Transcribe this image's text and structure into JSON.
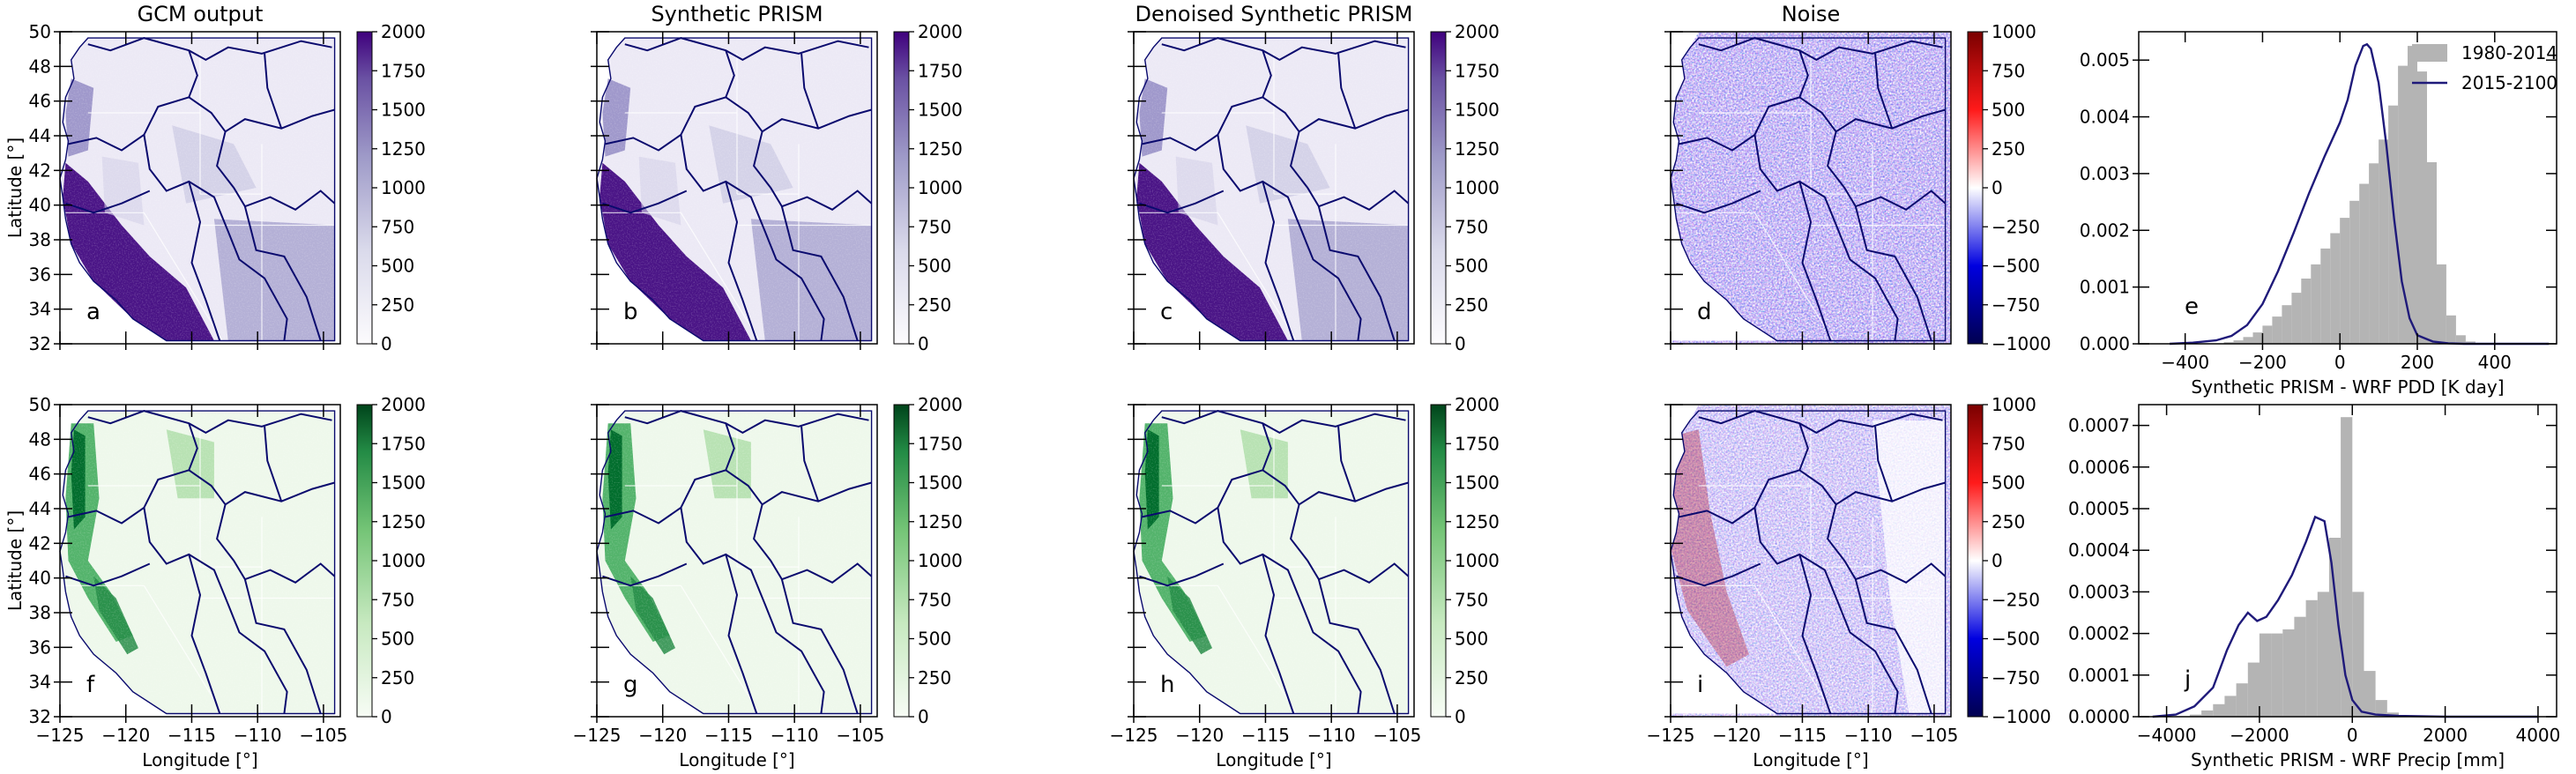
{
  "figure": {
    "col_titles": [
      "GCM output",
      "Synthetic PRISM",
      "Denoised Synthetic PRISM",
      "Noise"
    ],
    "ylabel": "Latitude [°]",
    "xlabel": "Longitude [°]",
    "lat_ticks": [
      "50",
      "48",
      "46",
      "44",
      "42",
      "40",
      "38",
      "36",
      "34",
      "32"
    ],
    "lon_ticks": [
      "−125",
      "−120",
      "−115",
      "−110",
      "−105"
    ],
    "cbar_ticks_pos": [
      "2000",
      "1750",
      "1500",
      "1250",
      "1000",
      "750",
      "500",
      "250",
      "0"
    ],
    "cbar_ticks_div": [
      "1000",
      "750",
      "500",
      "250",
      "0",
      "−250",
      "−500",
      "−750",
      "−1000"
    ],
    "panel_letters": [
      "a",
      "b",
      "c",
      "d",
      "e",
      "f",
      "g",
      "h",
      "i",
      "j"
    ]
  },
  "colors": {
    "purple_dark": "#3f007d",
    "purple_light": "#fcfbfd",
    "green_dark": "#00441b",
    "green_light": "#f7fcf5",
    "noise_high": "#67000d",
    "noise_low": "#000080",
    "boundary": "#0a0a6e",
    "hist_bar": "#b4b4b4",
    "line": "#1f1a7a"
  },
  "chart_data": [
    {
      "type": "area",
      "title": "",
      "xlabel": "Synthetic PRISM - WRF PDD [K day]",
      "ylabel": "",
      "xlim": [
        -520,
        560
      ],
      "ylim": [
        0,
        0.0055
      ],
      "xticks": [
        "−400",
        "−200",
        "0",
        "200",
        "400"
      ],
      "yticks": [
        "0.000",
        "0.001",
        "0.002",
        "0.003",
        "0.004",
        "0.005"
      ],
      "legend_position": "top-right",
      "series": [
        {
          "name": "1980-2014",
          "render": "histogram",
          "bin_width": 25,
          "bin_start": -300,
          "values": [
            3e-05,
            6e-05,
            0.00012,
            0.0002,
            0.00032,
            0.00048,
            0.00068,
            0.0009,
            0.00115,
            0.0014,
            0.00168,
            0.00195,
            0.00222,
            0.00252,
            0.00282,
            0.00318,
            0.0036,
            0.0042,
            0.0049,
            0.00525,
            0.0048,
            0.0032,
            0.0014,
            0.0005,
            0.00015,
            4e-05
          ]
        },
        {
          "name": "2015-2100",
          "render": "line",
          "x": [
            -440,
            -380,
            -320,
            -280,
            -240,
            -200,
            -160,
            -120,
            -80,
            -40,
            0,
            20,
            40,
            60,
            70,
            80,
            100,
            120,
            140,
            160,
            180,
            200,
            240,
            280,
            320,
            400,
            500,
            540
          ],
          "y": [
            0,
            2e-05,
            6e-05,
            0.00014,
            0.00033,
            0.0007,
            0.00128,
            0.00195,
            0.00265,
            0.0033,
            0.0039,
            0.0043,
            0.0049,
            0.00525,
            0.00528,
            0.0052,
            0.0046,
            0.0035,
            0.0022,
            0.0011,
            0.00045,
            0.00015,
            4e-05,
            1e-05,
            0,
            0,
            0,
            0
          ]
        }
      ]
    },
    {
      "type": "area",
      "title": "",
      "xlabel": "Synthetic PRISM - WRF Precip [mm]",
      "ylabel": "",
      "xlim": [
        -4600,
        4400
      ],
      "ylim": [
        0,
        0.00075
      ],
      "xticks": [
        "−4000",
        "−2000",
        "0",
        "2000",
        "4000"
      ],
      "yticks": [
        "0.0000",
        "0.0001",
        "0.0002",
        "0.0003",
        "0.0004",
        "0.0005",
        "0.0006",
        "0.0007"
      ],
      "series": [
        {
          "name": "1980-2014",
          "render": "histogram",
          "bin_width": 250,
          "bin_start": -3500,
          "values": [
            5e-06,
            1.5e-05,
            3e-05,
            5e-05,
            8e-05,
            0.00013,
            0.0002,
            0.0002,
            0.00021,
            0.00024,
            0.00028,
            0.0003,
            0.00043,
            0.00072,
            0.0003,
            0.00011,
            4e-05,
            1e-05
          ]
        },
        {
          "name": "2015-2100",
          "render": "line",
          "x": [
            -4300,
            -3800,
            -3400,
            -3000,
            -2700,
            -2450,
            -2250,
            -2050,
            -1850,
            -1600,
            -1300,
            -1000,
            -800,
            -600,
            -450,
            -300,
            -150,
            0,
            200,
            500,
            1000,
            2000,
            3000,
            4000
          ],
          "y": [
            0,
            5e-06,
            2.5e-05,
            7e-05,
            0.00016,
            0.00022,
            0.00025,
            0.00023,
            0.00024,
            0.00028,
            0.00034,
            0.00042,
            0.00048,
            0.00047,
            0.00037,
            0.00022,
            0.0001,
            4e-05,
            1.2e-05,
            5e-06,
            2e-06,
            0,
            0,
            0
          ]
        }
      ]
    }
  ]
}
